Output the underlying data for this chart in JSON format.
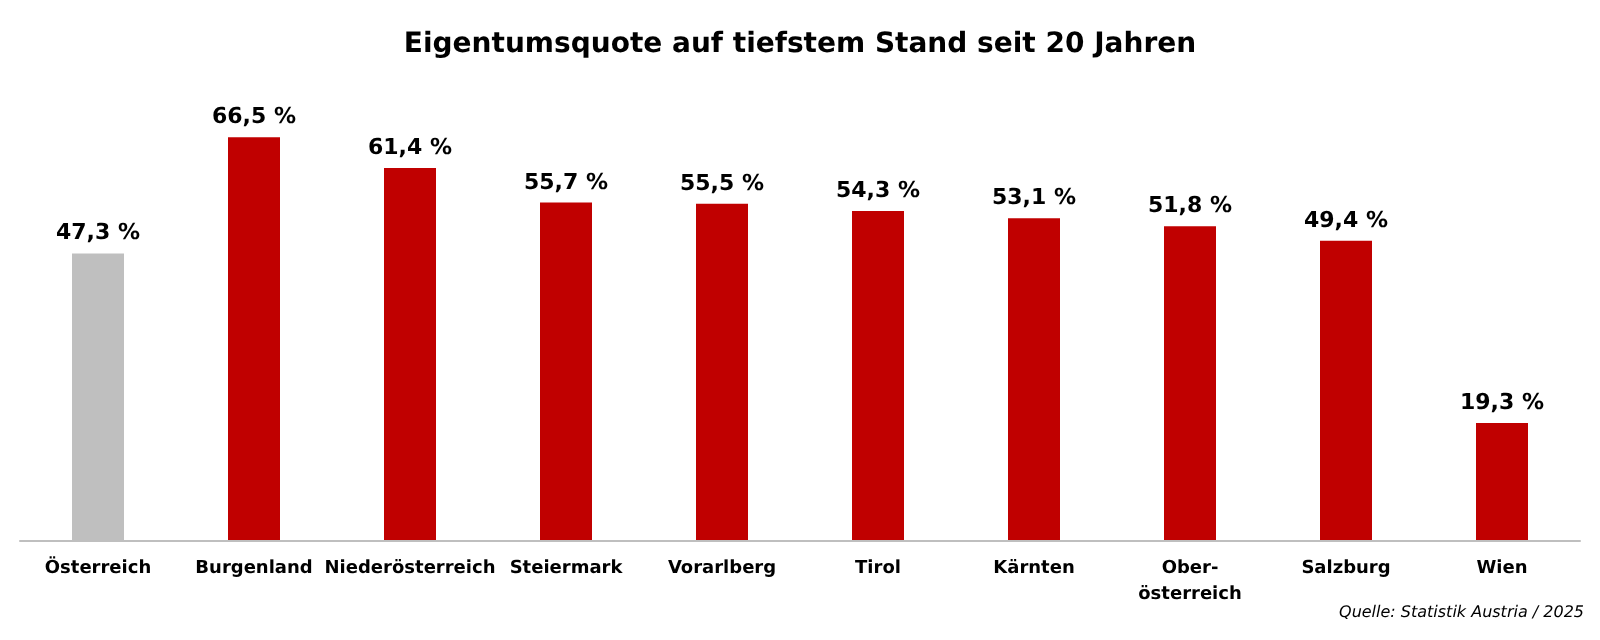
{
  "chart_data": {
    "type": "bar",
    "title": "Eigentumsquote auf tiefstem Stand seit 20 Jahren",
    "categories": [
      "Österreich",
      "Burgenland",
      "Niederösterreich",
      "Steiermark",
      "Vorarlberg",
      "Tirol",
      "Kärnten",
      "Ober-\nösterreich",
      "Salzburg",
      "Wien"
    ],
    "values": [
      47.3,
      66.5,
      61.4,
      55.7,
      55.5,
      54.3,
      53.1,
      51.8,
      49.4,
      19.3
    ],
    "colors": [
      "#bfbfbf",
      "#c00000",
      "#c00000",
      "#c00000",
      "#c00000",
      "#c00000",
      "#c00000",
      "#c00000",
      "#c00000",
      "#c00000"
    ],
    "value_labels": [
      "47,3 %",
      "66,5 %",
      "61,4 %",
      "55,7 %",
      "55,5 %",
      "54,3 %",
      "53,1 %",
      "51,8 %",
      "49,4 %",
      "19,3 %"
    ],
    "annotations": [
      "Quelle: Statistik Austria / 2025"
    ]
  }
}
